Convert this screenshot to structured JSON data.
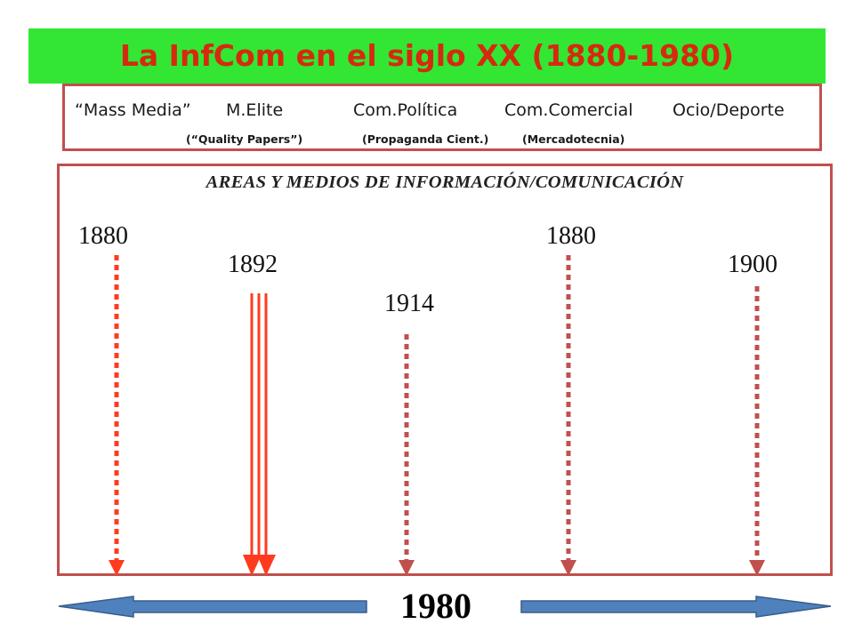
{
  "header": {
    "title": "La InfCom en el siglo XX (1880-1980)"
  },
  "categories": [
    "“Mass Media”",
    "M.Elite",
    "Com.Política",
    "Com.Comercial",
    "Ocio/Deporte"
  ],
  "subcategories": [
    "(“Quality Papers”)",
    "(Propaganda Cient.)",
    "(Mercadotecnia)"
  ],
  "areas": {
    "heading": "AREAS Y MEDIOS DE INFORMACIÓN/COMUNICACIÓN",
    "timelines": [
      {
        "year": "1880",
        "style": "dashed",
        "color": "#ff3b1f"
      },
      {
        "year": "1892",
        "style": "triple-solid",
        "color": "#ff3b1f"
      },
      {
        "year": "1914",
        "style": "dashed",
        "color": "#c0504d"
      },
      {
        "year": "1880",
        "style": "dashed",
        "color": "#c0504d"
      },
      {
        "year": "1900",
        "style": "dashed",
        "color": "#c0504d"
      }
    ]
  },
  "footer": {
    "year": "1980",
    "arrow_color": "#4f81bd"
  }
}
